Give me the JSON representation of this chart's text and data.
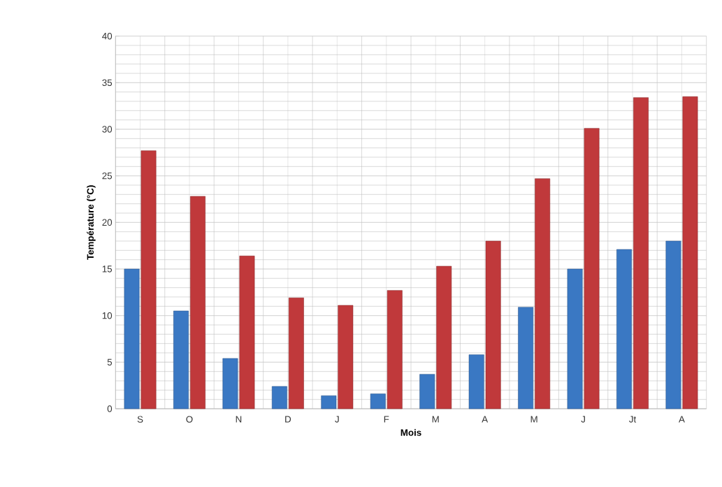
{
  "chart_data": {
    "type": "bar",
    "xlabel": "Mois",
    "ylabel": "Température (°C)",
    "categories": [
      "S",
      "O",
      "N",
      "D",
      "J",
      "F",
      "M",
      "A",
      "M",
      "J",
      "Jt",
      "A"
    ],
    "series": [
      {
        "color": "#3a78c3",
        "values": [
          15,
          10.5,
          5.4,
          2.4,
          1.4,
          1.6,
          3.7,
          5.8,
          10.9,
          15,
          17.1,
          18
        ]
      },
      {
        "color": "#c0393b",
        "values": [
          27.7,
          22.8,
          16.4,
          11.9,
          11.1,
          12.7,
          15.3,
          18,
          24.7,
          30.1,
          33.4,
          33.5
        ]
      }
    ],
    "ylim": [
      0,
      40
    ],
    "yticks": [
      0,
      5,
      10,
      15,
      20,
      25,
      30,
      35,
      40
    ],
    "grid": true
  }
}
